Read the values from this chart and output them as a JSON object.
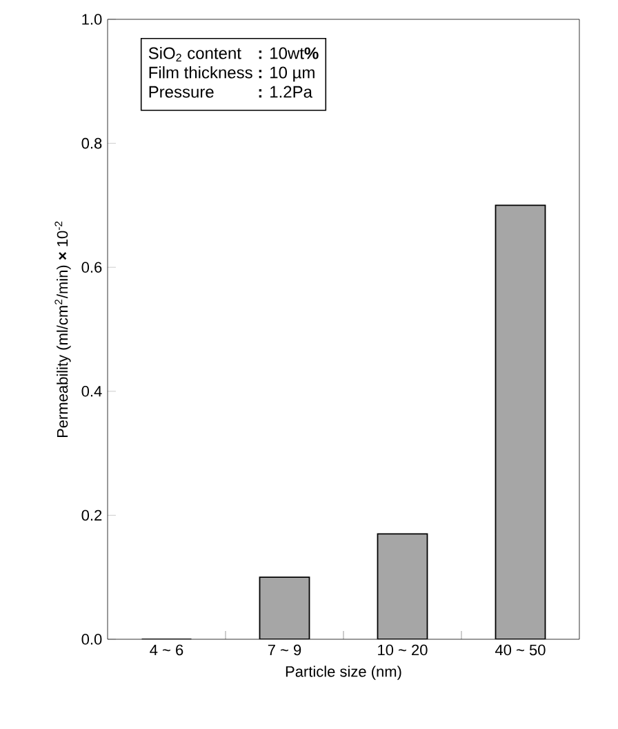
{
  "chart_data": {
    "type": "bar",
    "xlabel": "Particle size    (nm)",
    "ylabel": "Permeability  (ml/cm$^{2}$/min) **×** 10$^{-2}$",
    "categories": [
      "4 ~ 6",
      "7 ~ 9",
      "10 ~ 20",
      "40 ~ 50"
    ],
    "values": [
      0,
      0.1,
      0.17,
      0.7
    ],
    "color": "#a6a6a6",
    "ylim": [
      0,
      1.0
    ],
    "yticks": [
      {
        "value": 0,
        "label": "0.0"
      },
      {
        "value": 0.2,
        "label": "0.2"
      },
      {
        "value": 0.4,
        "label": "0.4"
      },
      {
        "value": 0.6,
        "label": "0.6"
      },
      {
        "value": 0.8,
        "label": "0.8"
      },
      {
        "value": 1.0,
        "label": "1.0"
      }
    ],
    "annotations": [
      "SiO$_{2}$ content",
      "**:** 10wt**%**",
      "Film thickness",
      "**:** 10 µm",
      "Pressure",
      "**:** 1.2Pa"
    ]
  }
}
